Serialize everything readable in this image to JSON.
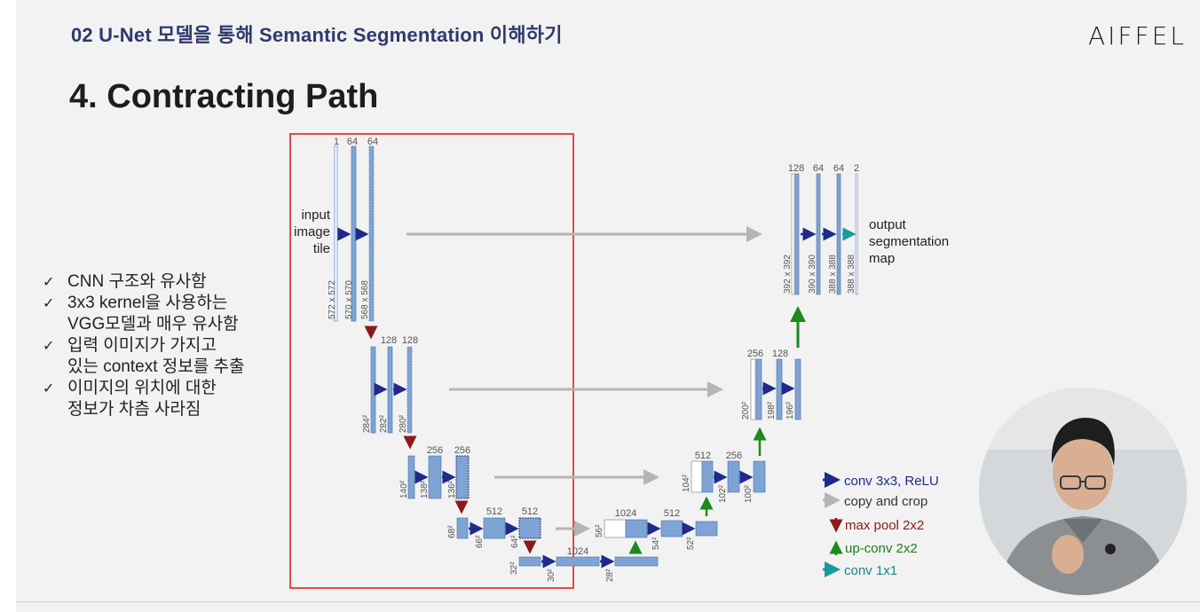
{
  "header": {
    "section": "02 U-Net 모델을 통해 Semantic Segmentation 이해하기",
    "logo": "AIFFEL"
  },
  "title": "4. Contracting Path",
  "bullets": [
    {
      "lines": [
        "CNN 구조와 유사함"
      ]
    },
    {
      "lines": [
        "3x3 kernel을 사용하는",
        "VGG모델과 매우 유사함"
      ]
    },
    {
      "lines": [
        "입력 이미지가 가지고",
        "있는 context 정보를 추출"
      ]
    },
    {
      "lines": [
        "이미지의 위치에 대한",
        "정보가 차츰 사라짐"
      ]
    }
  ],
  "diagram": {
    "input_label": [
      "input",
      "image",
      "tile"
    ],
    "output_label": [
      "output",
      "segmentation",
      "map"
    ],
    "channel_labels": {
      "l1": [
        "1",
        "64",
        "64"
      ],
      "l2": [
        "128",
        "128"
      ],
      "l3": [
        "256",
        "256"
      ],
      "l4": [
        "512",
        "512"
      ],
      "l5": [
        "1024"
      ],
      "r4": [
        "1024",
        "512"
      ],
      "r3": [
        "512",
        "256"
      ],
      "r2": [
        "256",
        "128"
      ],
      "r1": [
        "128",
        "64",
        "64",
        "2"
      ]
    },
    "size_labels": {
      "l1": [
        "572 x 572",
        "570 x 570",
        "568 x 568"
      ],
      "l2": [
        "284²",
        "282²",
        "280²"
      ],
      "l3": [
        "140²",
        "138²",
        "136²"
      ],
      "l4": [
        "68²",
        "66²",
        "64²"
      ],
      "l5": [
        "32²",
        "30²",
        "28²"
      ],
      "r4": [
        "56²",
        "54²",
        "52²"
      ],
      "r3": [
        "104²",
        "102²",
        "100²"
      ],
      "r2": [
        "200²",
        "198²",
        "196²"
      ],
      "r1": [
        "392 x 392",
        "390 x 390",
        "388 x 388",
        "388 x 388"
      ]
    },
    "legend": [
      {
        "label": "conv 3x3, ReLU",
        "color": "#1f2a8a",
        "icon": "right-arrow-icon"
      },
      {
        "label": "copy and crop",
        "color": "#333333",
        "icon": "right-arrow-icon"
      },
      {
        "label": "max pool 2x2",
        "color": "#8b1a1a",
        "icon": "down-arrow-icon"
      },
      {
        "label": "up-conv 2x2",
        "color": "#1d7a1d",
        "icon": "up-arrow-icon"
      },
      {
        "label": "conv 1x1",
        "color": "#1a8a8a",
        "icon": "right-arrow-icon"
      }
    ],
    "colors": {
      "feature_map": "#7ea4d6",
      "feature_border": "#4a6f9e",
      "conv_arrow": "#1f2a8a",
      "copy_arrow": "#b5b5b5",
      "pool_arrow": "#8b1a1a",
      "upconv_arrow": "#1d8a1d",
      "conv1x1_arrow": "#1a9a9a",
      "highlight_box": "#e02020"
    }
  }
}
